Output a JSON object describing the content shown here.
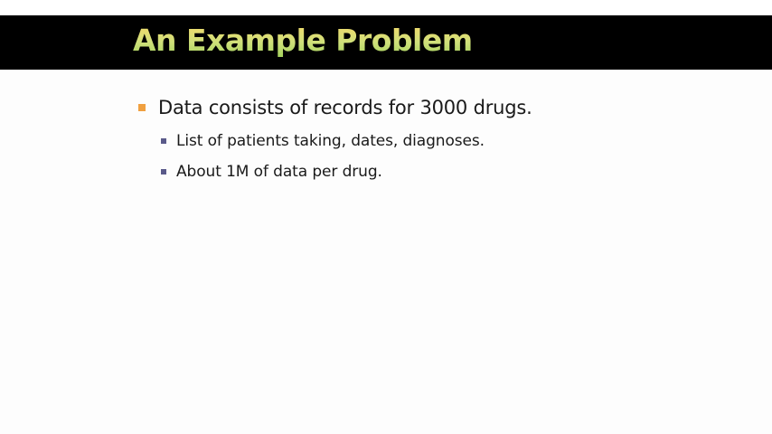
{
  "slide": {
    "title": "An Example Problem",
    "bullets": [
      {
        "text": "Data consists of records for 3000 drugs.",
        "sub_bullets": [
          "List of patients taking, dates, diagnoses.",
          "About 1M of data per drug."
        ]
      }
    ]
  },
  "colors": {
    "title_bar": "#000000",
    "title_text_top": "#f6d96a",
    "title_text_bottom": "#9fd05a",
    "bullet_l1": "#f0a040",
    "bullet_l2": "#5a5a8a",
    "body_text": "#1a1a1a",
    "background": "#fdfdfd"
  }
}
